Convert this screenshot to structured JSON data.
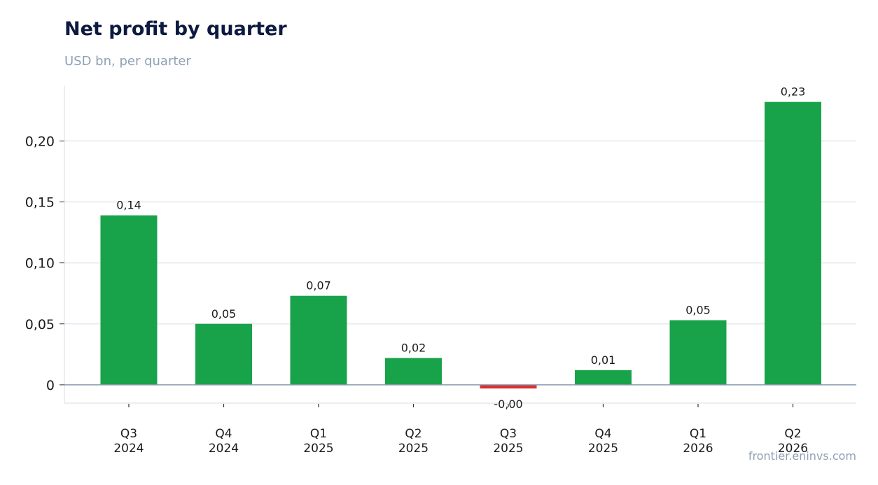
{
  "header": {
    "title": "Net profit by quarter",
    "subtitle": "USD bn, per quarter"
  },
  "footer": {
    "source": "frontier.eninvs.com"
  },
  "colors": {
    "positive": "#18a34a",
    "negative": "#dc2f2f",
    "grid": "#e6e9ef",
    "zero_line": "#8a9bb0"
  },
  "chart_data": {
    "type": "bar",
    "title": "Net profit by quarter",
    "subtitle": "USD bn, per quarter",
    "categories": [
      [
        "Q3",
        "2024"
      ],
      [
        "Q4",
        "2024"
      ],
      [
        "Q1",
        "2025"
      ],
      [
        "Q2",
        "2025"
      ],
      [
        "Q3",
        "2025"
      ],
      [
        "Q4",
        "2025"
      ],
      [
        "Q1",
        "2026"
      ],
      [
        "Q2",
        "2026"
      ]
    ],
    "values": [
      0.139,
      0.05,
      0.073,
      0.022,
      -0.003,
      0.012,
      0.053,
      0.232
    ],
    "data_labels": [
      "0,14",
      "0,05",
      "0,07",
      "0,02",
      "-0,00",
      "0,01",
      "0,05",
      "0,23"
    ],
    "y_ticks": [
      0,
      0.05,
      0.1,
      0.15,
      0.2
    ],
    "y_tick_labels": [
      "0",
      "0,05",
      "0,10",
      "0,15",
      "0,20"
    ],
    "ylim": [
      -0.015,
      0.245
    ],
    "grid": true,
    "legend": "none"
  }
}
